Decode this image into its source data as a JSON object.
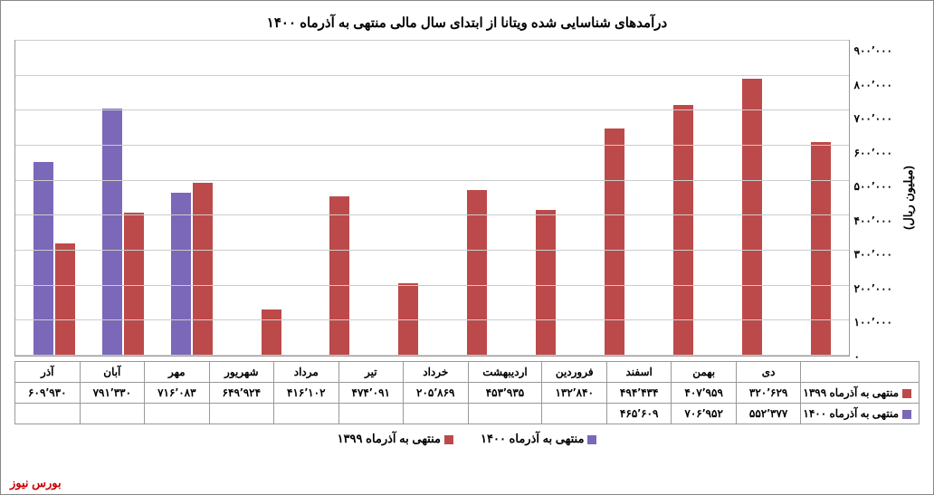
{
  "chart": {
    "type": "bar",
    "title": "درآمدهای شناسایی شده ویتانا از ابتدای سال مالی منتهی به آذرماه ۱۴۰۰",
    "y_axis_label": "(میلیون ریال)",
    "ymax": 900000,
    "ytick_step": 100000,
    "yticks": [
      "۹۰۰٬۰۰۰",
      "۸۰۰٬۰۰۰",
      "۷۰۰٬۰۰۰",
      "۶۰۰٬۰۰۰",
      "۵۰۰٬۰۰۰",
      "۴۰۰٬۰۰۰",
      "۳۰۰٬۰۰۰",
      "۲۰۰٬۰۰۰",
      "۱۰۰٬۰۰۰",
      "۰"
    ],
    "categories": [
      "دی",
      "بهمن",
      "اسفند",
      "فروردین",
      "اردیبهشت",
      "خرداد",
      "تیر",
      "مرداد",
      "شهریور",
      "مهر",
      "آبان",
      "آذر"
    ],
    "series": [
      {
        "name": "منتهی به آذرماه ۱۳۹۹",
        "color": "#bd4a4a",
        "values": [
          320629,
          407959,
          494434,
          132840,
          453935,
          205869,
          474091,
          416102,
          649924,
          716083,
          791330,
          609930
        ],
        "labels": [
          "۳۲۰٬۶۲۹",
          "۴۰۷٬۹۵۹",
          "۴۹۴٬۴۳۴",
          "۱۳۲٬۸۴۰",
          "۴۵۳٬۹۳۵",
          "۲۰۵٬۸۶۹",
          "۴۷۴٬۰۹۱",
          "۴۱۶٬۱۰۲",
          "۶۴۹٬۹۲۴",
          "۷۱۶٬۰۸۳",
          "۷۹۱٬۳۳۰",
          "۶۰۹٬۹۳۰"
        ]
      },
      {
        "name": "منتهی به آذرماه ۱۴۰۰",
        "color": "#7b68b8",
        "values": [
          552377,
          706952,
          465609,
          null,
          null,
          null,
          null,
          null,
          null,
          null,
          null,
          null
        ],
        "labels": [
          "۵۵۲٬۳۷۷",
          "۷۰۶٬۹۵۲",
          "۴۶۵٬۶۰۹",
          "",
          "",
          "",
          "",
          "",
          "",
          "",
          "",
          ""
        ]
      }
    ],
    "grid_color": "#cccccc",
    "background_color": "#ffffff",
    "border_color": "#999999"
  },
  "footer_brand": "بورس نیوز"
}
